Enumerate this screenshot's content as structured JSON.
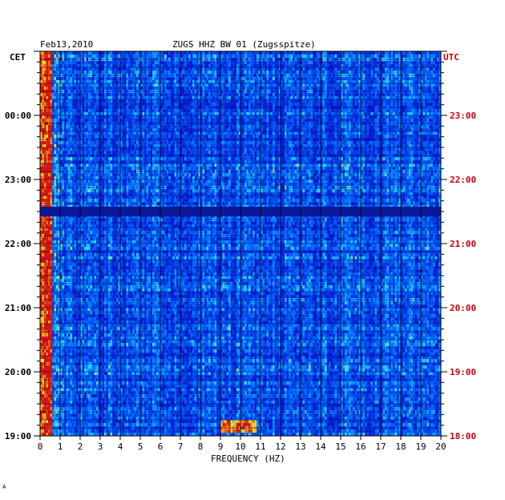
{
  "header": {
    "date": "Feb13,2010",
    "station": "ZUGS HHZ BW 01 (Zugsspitze)",
    "left_tz": "CET",
    "right_tz": "UTC"
  },
  "colors": {
    "background_blue": "#0a1ed2",
    "deep_blue": "#00007a",
    "energy_cyan": "#36d0ff",
    "energy_yellow": "#f4e51c",
    "energy_red": "#d61414",
    "utc_label": "#cc0000"
  },
  "chart_data": {
    "type": "heatmap",
    "title": "ZUGS HHZ BW 01 (Zugsspitze)",
    "xlabel": "FREQUENCY (HZ)",
    "ylabel": "",
    "xlim": [
      0,
      20
    ],
    "x_ticks": [
      "0",
      "1",
      "2",
      "3",
      "4",
      "5",
      "6",
      "7",
      "8",
      "9",
      "10",
      "11",
      "12",
      "13",
      "14",
      "15",
      "16",
      "17",
      "18",
      "19",
      "20"
    ],
    "y_left_ticks": [
      "19:00",
      "20:00",
      "21:00",
      "22:00",
      "23:00",
      "00:00"
    ],
    "y_right_ticks": [
      "18:00",
      "19:00",
      "20:00",
      "21:00",
      "22:00",
      "23:00"
    ],
    "time_range_hours": 6,
    "grid": true,
    "description_values": {
      "low_frequency_energy_band_hz": [
        0,
        0.6
      ],
      "strong_event_utc": "18:10",
      "strong_event_frequency_hz": [
        9,
        10.8
      ],
      "quiet_band_utc": "21:30"
    }
  },
  "footer": {
    "mark": "ᴬ"
  }
}
